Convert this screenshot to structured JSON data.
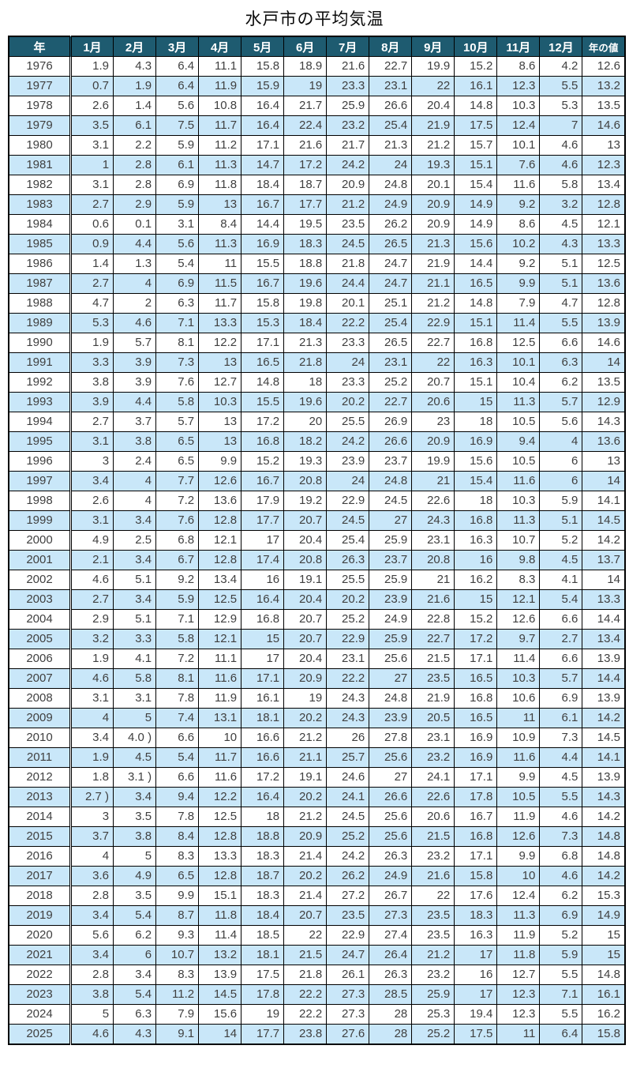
{
  "title": "水戸市の平均気温",
  "chart_data": {
    "type": "table",
    "title": "水戸市の平均気温",
    "columns": [
      "年",
      "1月",
      "2月",
      "3月",
      "4月",
      "5月",
      "6月",
      "7月",
      "8月",
      "9月",
      "10月",
      "11月",
      "12月",
      "年の値"
    ],
    "rows": [
      [
        "1976",
        "1.9",
        "4.3",
        "6.4",
        "11.1",
        "15.8",
        "18.9",
        "21.6",
        "22.7",
        "19.9",
        "15.2",
        "8.6",
        "4.2",
        "12.6"
      ],
      [
        "1977",
        "0.7",
        "1.9",
        "6.4",
        "11.9",
        "15.9",
        "19",
        "23.3",
        "23.1",
        "22",
        "16.1",
        "12.3",
        "5.5",
        "13.2"
      ],
      [
        "1978",
        "2.6",
        "1.4",
        "5.6",
        "10.8",
        "16.4",
        "21.7",
        "25.9",
        "26.6",
        "20.4",
        "14.8",
        "10.3",
        "5.3",
        "13.5"
      ],
      [
        "1979",
        "3.5",
        "6.1",
        "7.5",
        "11.7",
        "16.4",
        "22.4",
        "23.2",
        "25.4",
        "21.9",
        "17.5",
        "12.4",
        "7",
        "14.6"
      ],
      [
        "1980",
        "3.1",
        "2.2",
        "5.9",
        "11.2",
        "17.1",
        "21.6",
        "21.7",
        "21.3",
        "21.2",
        "15.7",
        "10.1",
        "4.6",
        "13"
      ],
      [
        "1981",
        "1",
        "2.8",
        "6.1",
        "11.3",
        "14.7",
        "17.2",
        "24.2",
        "24",
        "19.3",
        "15.1",
        "7.6",
        "4.6",
        "12.3"
      ],
      [
        "1982",
        "3.1",
        "2.8",
        "6.9",
        "11.8",
        "18.4",
        "18.7",
        "20.9",
        "24.8",
        "20.1",
        "15.4",
        "11.6",
        "5.8",
        "13.4"
      ],
      [
        "1983",
        "2.7",
        "2.9",
        "5.9",
        "13",
        "16.7",
        "17.7",
        "21.2",
        "24.9",
        "20.9",
        "14.9",
        "9.2",
        "3.2",
        "12.8"
      ],
      [
        "1984",
        "0.6",
        "0.1",
        "3.1",
        "8.4",
        "14.4",
        "19.5",
        "23.5",
        "26.2",
        "20.9",
        "14.9",
        "8.6",
        "4.5",
        "12.1"
      ],
      [
        "1985",
        "0.9",
        "4.4",
        "5.6",
        "11.3",
        "16.9",
        "18.3",
        "24.5",
        "26.5",
        "21.3",
        "15.6",
        "10.2",
        "4.3",
        "13.3"
      ],
      [
        "1986",
        "1.4",
        "1.3",
        "5.4",
        "11",
        "15.5",
        "18.8",
        "21.8",
        "24.7",
        "21.9",
        "14.4",
        "9.2",
        "5.1",
        "12.5"
      ],
      [
        "1987",
        "2.7",
        "4",
        "6.9",
        "11.5",
        "16.7",
        "19.6",
        "24.4",
        "24.7",
        "21.1",
        "16.5",
        "9.9",
        "5.1",
        "13.6"
      ],
      [
        "1988",
        "4.7",
        "2",
        "6.3",
        "11.7",
        "15.8",
        "19.8",
        "20.1",
        "25.1",
        "21.2",
        "14.8",
        "7.9",
        "4.7",
        "12.8"
      ],
      [
        "1989",
        "5.3",
        "4.6",
        "7.1",
        "13.3",
        "15.3",
        "18.4",
        "22.2",
        "25.4",
        "22.9",
        "15.1",
        "11.4",
        "5.5",
        "13.9"
      ],
      [
        "1990",
        "1.9",
        "5.7",
        "8.1",
        "12.2",
        "17.1",
        "21.3",
        "23.3",
        "26.5",
        "22.7",
        "16.8",
        "12.5",
        "6.6",
        "14.6"
      ],
      [
        "1991",
        "3.3",
        "3.9",
        "7.3",
        "13",
        "16.5",
        "21.8",
        "24",
        "23.1",
        "22",
        "16.3",
        "10.1",
        "6.3",
        "14"
      ],
      [
        "1992",
        "3.8",
        "3.9",
        "7.6",
        "12.7",
        "14.8",
        "18",
        "23.3",
        "25.2",
        "20.7",
        "15.1",
        "10.4",
        "6.2",
        "13.5"
      ],
      [
        "1993",
        "3.9",
        "4.4",
        "5.8",
        "10.3",
        "15.5",
        "19.6",
        "20.2",
        "22.7",
        "20.6",
        "15",
        "11.3",
        "5.7",
        "12.9"
      ],
      [
        "1994",
        "2.7",
        "3.7",
        "5.7",
        "13",
        "17.2",
        "20",
        "25.5",
        "26.9",
        "23",
        "18",
        "10.5",
        "5.6",
        "14.3"
      ],
      [
        "1995",
        "3.1",
        "3.8",
        "6.5",
        "13",
        "16.8",
        "18.2",
        "24.2",
        "26.6",
        "20.9",
        "16.9",
        "9.4",
        "4",
        "13.6"
      ],
      [
        "1996",
        "3",
        "2.4",
        "6.5",
        "9.9",
        "15.2",
        "19.3",
        "23.9",
        "23.7",
        "19.9",
        "15.6",
        "10.5",
        "6",
        "13"
      ],
      [
        "1997",
        "3.4",
        "4",
        "7.7",
        "12.6",
        "16.7",
        "20.8",
        "24",
        "24.8",
        "21",
        "15.4",
        "11.6",
        "6",
        "14"
      ],
      [
        "1998",
        "2.6",
        "4",
        "7.2",
        "13.6",
        "17.9",
        "19.2",
        "22.9",
        "24.5",
        "22.6",
        "18",
        "10.3",
        "5.9",
        "14.1"
      ],
      [
        "1999",
        "3.1",
        "3.4",
        "7.6",
        "12.8",
        "17.7",
        "20.7",
        "24.5",
        "27",
        "24.3",
        "16.8",
        "11.3",
        "5.1",
        "14.5"
      ],
      [
        "2000",
        "4.9",
        "2.5",
        "6.8",
        "12.1",
        "17",
        "20.4",
        "25.4",
        "25.9",
        "23.1",
        "16.3",
        "10.7",
        "5.2",
        "14.2"
      ],
      [
        "2001",
        "2.1",
        "3.4",
        "6.7",
        "12.8",
        "17.4",
        "20.8",
        "26.3",
        "23.7",
        "20.8",
        "16",
        "9.8",
        "4.5",
        "13.7"
      ],
      [
        "2002",
        "4.6",
        "5.1",
        "9.2",
        "13.4",
        "16",
        "19.1",
        "25.5",
        "25.9",
        "21",
        "16.2",
        "8.3",
        "4.1",
        "14"
      ],
      [
        "2003",
        "2.7",
        "3.4",
        "5.9",
        "12.5",
        "16.4",
        "20.4",
        "20.2",
        "23.9",
        "21.6",
        "15",
        "12.1",
        "5.4",
        "13.3"
      ],
      [
        "2004",
        "2.9",
        "5.1",
        "7.1",
        "12.9",
        "16.8",
        "20.7",
        "25.2",
        "24.9",
        "22.8",
        "15.2",
        "12.6",
        "6.6",
        "14.4"
      ],
      [
        "2005",
        "3.2",
        "3.3",
        "5.8",
        "12.1",
        "15",
        "20.7",
        "22.9",
        "25.9",
        "22.7",
        "17.2",
        "9.7",
        "2.7",
        "13.4"
      ],
      [
        "2006",
        "1.9",
        "4.1",
        "7.2",
        "11.1",
        "17",
        "20.4",
        "23.1",
        "25.6",
        "21.5",
        "17.1",
        "11.4",
        "6.6",
        "13.9"
      ],
      [
        "2007",
        "4.6",
        "5.8",
        "8.1",
        "11.6",
        "17.1",
        "20.9",
        "22.2",
        "27",
        "23.5",
        "16.5",
        "10.3",
        "5.7",
        "14.4"
      ],
      [
        "2008",
        "3.1",
        "3.1",
        "7.8",
        "11.9",
        "16.1",
        "19",
        "24.3",
        "24.8",
        "21.9",
        "16.8",
        "10.6",
        "6.9",
        "13.9"
      ],
      [
        "2009",
        "4",
        "5",
        "7.4",
        "13.1",
        "18.1",
        "20.2",
        "24.3",
        "23.9",
        "20.5",
        "16.5",
        "11",
        "6.1",
        "14.2"
      ],
      [
        "2010",
        "3.4",
        "4.0 )",
        "6.6",
        "10",
        "16.6",
        "21.2",
        "26",
        "27.8",
        "23.1",
        "16.9",
        "10.9",
        "7.3",
        "14.5"
      ],
      [
        "2011",
        "1.9",
        "4.5",
        "5.4",
        "11.7",
        "16.6",
        "21.1",
        "25.7",
        "25.6",
        "23.2",
        "16.9",
        "11.6",
        "4.4",
        "14.1"
      ],
      [
        "2012",
        "1.8",
        "3.1 )",
        "6.6",
        "11.6",
        "17.2",
        "19.1",
        "24.6",
        "27",
        "24.1",
        "17.1",
        "9.9",
        "4.5",
        "13.9"
      ],
      [
        "2013",
        "2.7 )",
        "3.4",
        "9.4",
        "12.2",
        "16.4",
        "20.2",
        "24.1",
        "26.6",
        "22.6",
        "17.8",
        "10.5",
        "5.5",
        "14.3"
      ],
      [
        "2014",
        "3",
        "3.5",
        "7.8",
        "12.5",
        "18",
        "21.2",
        "24.5",
        "25.6",
        "20.6",
        "16.7",
        "11.9",
        "4.6",
        "14.2"
      ],
      [
        "2015",
        "3.7",
        "3.8",
        "8.4",
        "12.8",
        "18.8",
        "20.9",
        "25.2",
        "25.6",
        "21.5",
        "16.8",
        "12.6",
        "7.3",
        "14.8"
      ],
      [
        "2016",
        "4",
        "5",
        "8.3",
        "13.3",
        "18.3",
        "21.4",
        "24.2",
        "26.3",
        "23.2",
        "17.1",
        "9.9",
        "6.8",
        "14.8"
      ],
      [
        "2017",
        "3.6",
        "4.9",
        "6.5",
        "12.8",
        "18.7",
        "20.2",
        "26.2",
        "24.9",
        "21.6",
        "15.8",
        "10",
        "4.6",
        "14.2"
      ],
      [
        "2018",
        "2.8",
        "3.5",
        "9.9",
        "15.1",
        "18.3",
        "21.4",
        "27.2",
        "26.7",
        "22",
        "17.6",
        "12.4",
        "6.2",
        "15.3"
      ],
      [
        "2019",
        "3.4",
        "5.4",
        "8.7",
        "11.8",
        "18.4",
        "20.7",
        "23.5",
        "27.3",
        "23.5",
        "18.3",
        "11.3",
        "6.9",
        "14.9"
      ],
      [
        "2020",
        "5.6",
        "6.2",
        "9.3",
        "11.4",
        "18.5",
        "22",
        "22.9",
        "27.4",
        "23.5",
        "16.3",
        "11.9",
        "5.2",
        "15"
      ],
      [
        "2021",
        "3.4",
        "6",
        "10.7",
        "13.2",
        "18.1",
        "21.5",
        "24.7",
        "26.4",
        "21.2",
        "17",
        "11.8",
        "5.9",
        "15"
      ],
      [
        "2022",
        "2.8",
        "3.4",
        "8.3",
        "13.9",
        "17.5",
        "21.8",
        "26.1",
        "26.3",
        "23.2",
        "16",
        "12.7",
        "5.5",
        "14.8"
      ],
      [
        "2023",
        "3.8",
        "5.4",
        "11.2",
        "14.5",
        "17.8",
        "22.2",
        "27.3",
        "28.5",
        "25.9",
        "17",
        "12.3",
        "7.1",
        "16.1"
      ],
      [
        "2024",
        "5",
        "6.3",
        "7.9",
        "15.6",
        "19",
        "22.2",
        "27.3",
        "28",
        "25.3",
        "19.4",
        "12.3",
        "5.5",
        "16.2"
      ],
      [
        "2025",
        "4.6",
        "4.3",
        "9.1",
        "14",
        "17.7",
        "23.8",
        "27.6",
        "28",
        "25.2",
        "17.5",
        "11",
        "6.4",
        "15.8"
      ]
    ],
    "layout": {
      "header_position": "top",
      "row_striping": "alternate",
      "colors": {
        "header_bg": "#1e5b70",
        "header_text": "#ffffff",
        "stripe_bg": "#c9e7f9",
        "cell_text": "#3f3f3f",
        "border": "#000000"
      }
    }
  }
}
